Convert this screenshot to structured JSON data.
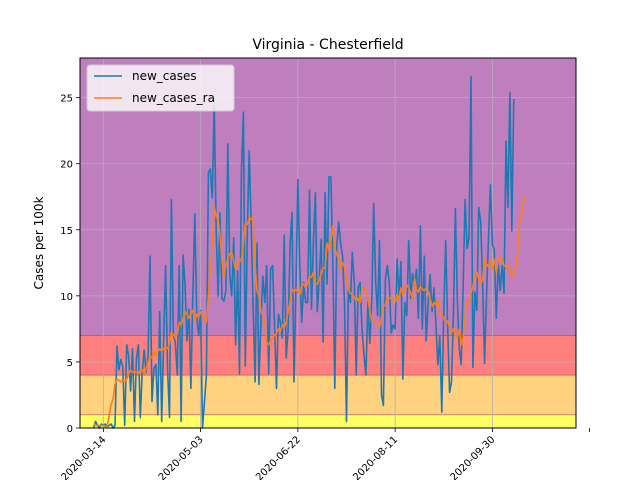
{
  "chart_data": {
    "type": "line",
    "title": "Virginia - Chesterfield",
    "xlabel": "",
    "ylabel": "Cases per 100k",
    "x_type": "date",
    "xlim": [
      "2020-03-02",
      "2020-11-12"
    ],
    "ylim": [
      0,
      28
    ],
    "yticks": [
      0,
      5,
      10,
      15,
      20,
      25
    ],
    "xticks": [
      "2020-03-14",
      "2020-05-03",
      "2020-06-22",
      "2020-08-11",
      "2020-09-30",
      "2020-11-19"
    ],
    "xtick_labels": [
      "2020-03-14",
      "2020-05-03",
      "2020-06-22",
      "2020-08-11",
      "2020-09-30",
      ""
    ],
    "grid": true,
    "legend_position": "upper-left",
    "background_bands": [
      {
        "from": 0,
        "to": 1,
        "color": "#ffff66"
      },
      {
        "from": 1,
        "to": 4,
        "color": "#ffd27f"
      },
      {
        "from": 4,
        "to": 7,
        "color": "#ff7f7f"
      },
      {
        "from": 7,
        "to": 28,
        "color": "#bf7fbf"
      }
    ],
    "band_edge_color": "#b03060",
    "start_date": "2020-03-09",
    "series": [
      {
        "name": "new_cases",
        "color": "#1f77b4",
        "values": [
          0.0,
          0.5,
          0.2,
          0.0,
          0.3,
          0.2,
          0.3,
          0.1,
          0.2,
          0.3,
          0.0,
          0.2,
          6.2,
          4.4,
          5.2,
          4.6,
          0.2,
          6.3,
          5.5,
          2.8,
          6.0,
          0.5,
          5.2,
          6.3,
          0.8,
          4.2,
          5.9,
          4.2,
          5.5,
          13.0,
          2.0,
          4.5,
          4.8,
          1.0,
          8.8,
          0.5,
          6.5,
          12.3,
          4.6,
          0.8,
          17.3,
          7.0,
          6.5,
          4.0,
          12.3,
          0.5,
          13.1,
          10.9,
          6.6,
          9.0,
          3.0,
          10.0,
          16.2,
          8.5,
          7.0,
          8.9,
          0.0,
          2.0,
          4.0,
          19.3,
          19.6,
          17.4,
          24.7,
          14.9,
          10.0,
          16.3,
          9.8,
          9.6,
          10.4,
          21.5,
          11.6,
          10.0,
          14.4,
          6.3,
          11.9,
          4.1,
          19.3,
          23.9,
          4.7,
          14.7,
          21.0,
          15.3,
          9.2,
          3.5,
          14.0,
          3.3,
          8.0,
          11.5,
          9.5,
          12.3,
          4.1,
          12.0,
          12.3,
          7.9,
          3.0,
          8.6,
          8.0,
          6.8,
          14.6,
          5.3,
          7.4,
          13.8,
          16.3,
          3.5,
          10.5,
          18.8,
          12.3,
          8.0,
          11.0,
          9.5,
          9.5,
          18.0,
          9.0,
          14.1,
          17.8,
          8.8,
          11.3,
          14.3,
          6.5,
          17.8,
          10.9,
          19.0,
          19.0,
          12.3,
          3.0,
          13.8,
          15.6,
          14.0,
          13.0,
          9.5,
          0.5,
          10.6,
          9.5,
          13.3,
          11.0,
          4.0,
          10.6,
          11.0,
          7.5,
          5.5,
          4.0,
          9.6,
          6.4,
          9.7,
          17.0,
          11.0,
          8.5,
          14.2,
          2.5,
          1.7,
          11.3,
          12.3,
          11.0,
          7.2,
          7.8,
          7.5,
          12.8,
          9.8,
          12.6,
          3.7,
          9.5,
          8.5,
          14.2,
          9.8,
          11.7,
          10.8,
          12.0,
          8.3,
          15.3,
          7.5,
          13.0,
          6.6,
          9.5,
          11.6,
          8.8,
          10.6,
          7.7,
          4.8,
          7.0,
          1.2,
          8.5,
          14.2,
          7.8,
          2.7,
          3.5,
          8.8,
          16.6,
          9.8,
          6.0,
          4.8,
          10.9,
          17.3,
          13.6,
          14.4,
          26.6,
          4.6,
          10.3,
          8.9,
          16.7,
          15.6,
          11.1,
          4.9,
          10.0,
          14.4,
          18.4,
          13.9,
          13.5,
          8.3,
          12.5,
          10.4,
          12.3,
          10.2,
          21.7,
          16.7,
          25.4,
          14.9,
          24.9
        ]
      },
      {
        "name": "new_cases_ra",
        "color": "#ff7f0e",
        "values": [
          0.3,
          0.2,
          0.2,
          0.2,
          0.2,
          0.2,
          0.1,
          0.1,
          1.0,
          1.8,
          2.2,
          3.3,
          3.7,
          3.6,
          3.5,
          3.6,
          3.5,
          3.7,
          4.1,
          4.4,
          4.2,
          4.3,
          4.2,
          4.1,
          4.4,
          4.4,
          4.0,
          4.5,
          5.0,
          5.4,
          5.3,
          5.8,
          5.5,
          5.8,
          6.0,
          5.8,
          6.0,
          6.1,
          6.0,
          6.4,
          7.3,
          7.0,
          6.9,
          7.1,
          8.0,
          7.8,
          8.3,
          8.8,
          8.6,
          8.3,
          8.7,
          8.9,
          8.1,
          8.6,
          8.4,
          8.8,
          8.5,
          8.3,
          8.0,
          10.0,
          12.0,
          14.0,
          16.8,
          16.0,
          15.8,
          14.6,
          12.7,
          11.5,
          12.3,
          12.8,
          13.2,
          13.3,
          12.6,
          12.0,
          12.3,
          12.8,
          12.6,
          14.0,
          15.5,
          15.4,
          15.9,
          15.8,
          16.0,
          12.3,
          10.4,
          10.0,
          8.9,
          8.5,
          8.0,
          6.5,
          6.3,
          6.6,
          6.8,
          7.0,
          7.2,
          7.5,
          7.3,
          7.8,
          7.6,
          8.0,
          8.8,
          9.6,
          10.5,
          10.3,
          10.5,
          10.3,
          10.1,
          10.8,
          10.9,
          10.6,
          10.9,
          11.5,
          11.4,
          11.8,
          10.9,
          10.9,
          11.2,
          11.7,
          12.1,
          12.1,
          14.0,
          13.5,
          14.2,
          15.3,
          13.6,
          13.1,
          12.8,
          12.0,
          12.5,
          12.2,
          11.2,
          10.5,
          10.2,
          10.1,
          9.9,
          9.6,
          9.8,
          9.5,
          10.5,
          10.6,
          10.3,
          9.8,
          8.9,
          8.1,
          8.2,
          7.9,
          7.8,
          7.6,
          8.4,
          9.2,
          9.3,
          9.9,
          9.8,
          9.9,
          9.7,
          9.5,
          10.1,
          9.8,
          10.6,
          10.1,
          10.7,
          10.8,
          10.6,
          10.2,
          9.8,
          11.3,
          10.5,
          10.3,
          10.7,
          10.5,
          10.4,
          10.6,
          10.3,
          9.8,
          9.2,
          9.5,
          9.3,
          9.7,
          8.6,
          8.6,
          8.3,
          8.0,
          8.1,
          7.6,
          7.2,
          7.5,
          7.0,
          6.8,
          7.5,
          6.3,
          7.0,
          8.5,
          9.5,
          9.5,
          10.2,
          10.7,
          11.5,
          11.8,
          11.3,
          10.9,
          11.2,
          12.8,
          12.4,
          12.2,
          12.7,
          12.0,
          12.8,
          11.8,
          12.7,
          13.0,
          12.8,
          12.3,
          12.2,
          12.3,
          12.0,
          11.4,
          11.6,
          12.2,
          13.2,
          15.5,
          16.2,
          17.1,
          17.6
        ]
      }
    ]
  }
}
